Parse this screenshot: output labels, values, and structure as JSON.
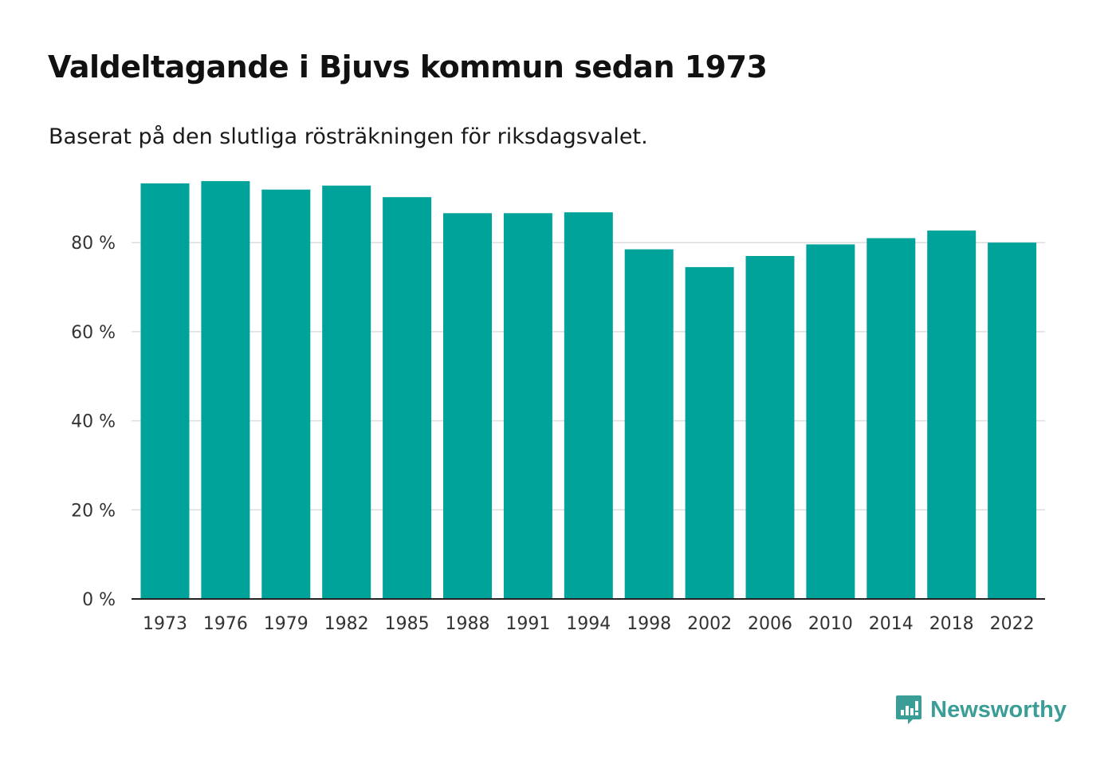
{
  "header": {
    "title": "Valdeltagande i Bjuvs kommun sedan 1973",
    "subtitle": "Baserat på den slutliga rösträkningen för riksdagsvalet."
  },
  "brand": {
    "name": "Newsworthy",
    "icon": "newsworthy-logo-icon",
    "color": "#3a9d96"
  },
  "colors": {
    "bar": "#00a39a",
    "grid": "#dddddd",
    "axis": "#222222"
  },
  "chart_data": {
    "type": "bar",
    "title": "Valdeltagande i Bjuvs kommun sedan 1973",
    "subtitle": "Baserat på den slutliga rösträkningen för riksdagsvalet.",
    "xlabel": "",
    "ylabel": "",
    "categories": [
      "1973",
      "1976",
      "1979",
      "1982",
      "1985",
      "1988",
      "1991",
      "1994",
      "1998",
      "2002",
      "2006",
      "2010",
      "2014",
      "2018",
      "2022"
    ],
    "values": [
      93.3,
      93.8,
      91.9,
      92.8,
      90.2,
      86.6,
      86.6,
      86.8,
      78.5,
      74.5,
      77.0,
      79.6,
      81.0,
      82.7,
      80.0
    ],
    "yticks": [
      0,
      20,
      40,
      60,
      80
    ],
    "ytick_labels": [
      "0 %",
      "20 %",
      "40 %",
      "60 %",
      "80 %"
    ],
    "ylim": [
      0,
      94
    ],
    "grid": true,
    "legend": "none"
  }
}
